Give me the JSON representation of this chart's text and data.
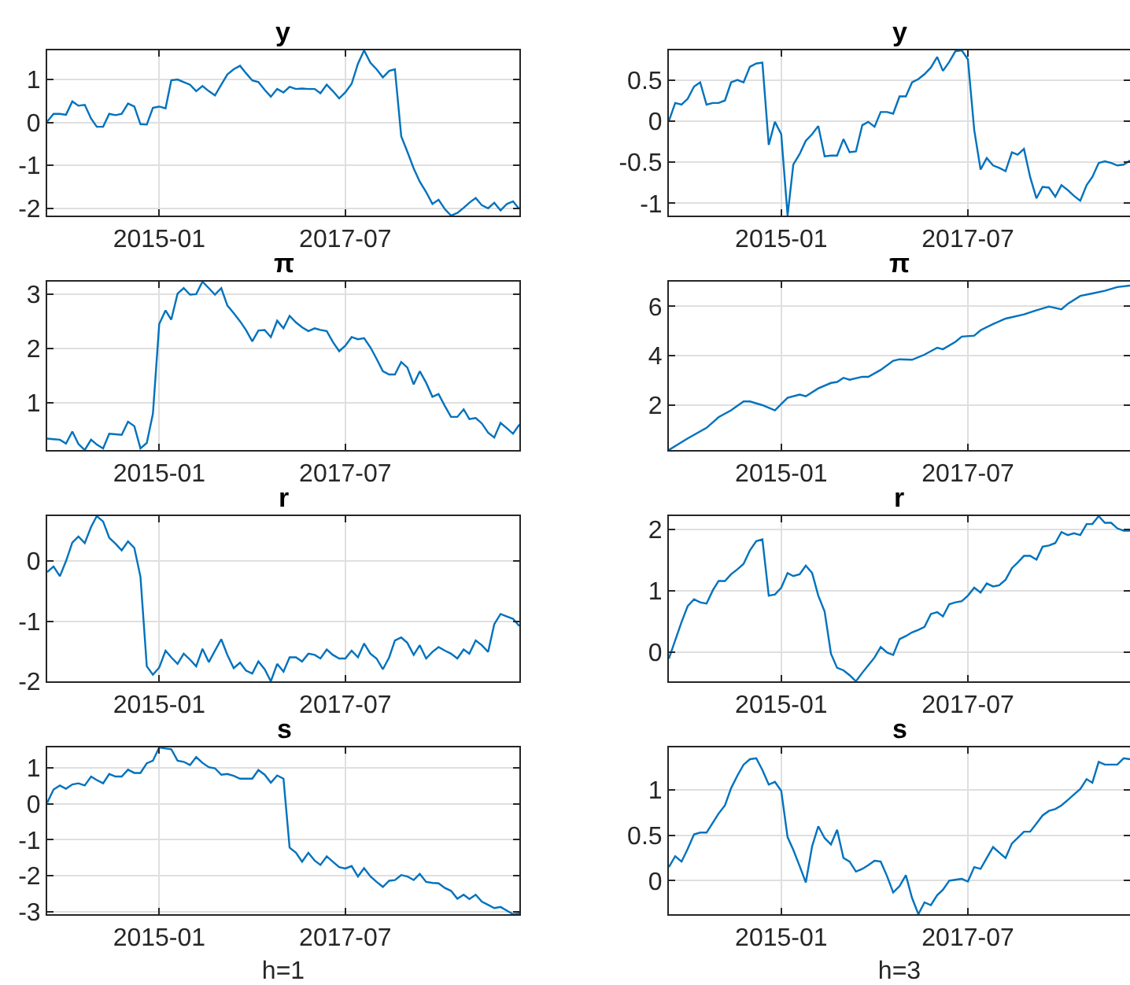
{
  "chart_data": [
    {
      "type": "line",
      "title": "y",
      "color": "#0072bd",
      "grid": true,
      "xlim": [
        "2013-07",
        "2019-11"
      ],
      "xticks": [
        "2015-01",
        "2017-07"
      ],
      "ylim": [
        -2.17,
        1.68
      ],
      "yticks": [
        -2,
        -1,
        0,
        1
      ],
      "x": [
        "2013-07",
        "2013-08",
        "2013-09",
        "2013-10",
        "2013-11",
        "2013-12",
        "2014-01",
        "2014-02",
        "2014-03",
        "2014-04",
        "2014-05",
        "2014-06",
        "2014-07",
        "2014-08",
        "2014-09",
        "2014-10",
        "2014-11",
        "2014-12",
        "2015-01",
        "2015-02",
        "2015-03",
        "2015-04",
        "2015-05",
        "2015-06",
        "2015-07",
        "2015-08",
        "2015-09",
        "2015-10",
        "2015-11",
        "2015-12",
        "2016-01",
        "2016-02",
        "2016-03",
        "2016-04",
        "2016-05",
        "2016-06",
        "2016-07",
        "2016-08",
        "2016-09",
        "2016-10",
        "2016-11",
        "2016-12",
        "2017-01",
        "2017-02",
        "2017-03",
        "2017-04",
        "2017-05",
        "2017-06",
        "2017-07",
        "2017-08",
        "2017-09",
        "2017-10",
        "2017-11",
        "2017-12",
        "2018-01",
        "2018-02",
        "2018-03",
        "2018-04",
        "2018-05",
        "2018-06",
        "2018-07",
        "2018-08",
        "2018-09",
        "2018-10",
        "2018-11",
        "2018-12",
        "2019-01",
        "2019-02",
        "2019-03",
        "2019-04",
        "2019-05",
        "2019-06",
        "2019-07",
        "2019-08",
        "2019-09",
        "2019-10",
        "2019-11"
      ],
      "values": [
        0.02,
        0.2,
        0.2,
        0.18,
        0.49,
        0.39,
        0.41,
        0.09,
        -0.1,
        -0.1,
        0.2,
        0.17,
        0.2,
        0.44,
        0.37,
        -0.04,
        -0.05,
        0.34,
        0.37,
        0.33,
        0.98,
        1.0,
        0.94,
        0.88,
        0.73,
        0.85,
        0.73,
        0.63,
        0.88,
        1.12,
        1.24,
        1.32,
        1.15,
        0.98,
        0.94,
        0.76,
        0.6,
        0.78,
        0.7,
        0.83,
        0.78,
        0.79,
        0.78,
        0.78,
        0.68,
        0.88,
        0.73,
        0.56,
        0.7,
        0.9,
        1.37,
        1.68,
        1.39,
        1.24,
        1.05,
        1.2,
        1.24,
        -0.32,
        -0.68,
        -1.07,
        -1.38,
        -1.62,
        -1.9,
        -1.8,
        -2.02,
        -2.17,
        -2.11,
        -1.99,
        -1.87,
        -1.76,
        -1.93,
        -2.0,
        -1.87,
        -2.05,
        -1.9,
        -1.84,
        -2.02
      ]
    },
    {
      "type": "line",
      "title": "y",
      "color": "#0072bd",
      "grid": true,
      "xlim": [
        "2013-07",
        "2019-09"
      ],
      "xticks": [
        "2015-01",
        "2017-07"
      ],
      "ylim": [
        -1.15,
        0.86
      ],
      "yticks": [
        -1,
        -0.5,
        0,
        0.5
      ],
      "x": [
        "2013-07",
        "2013-08",
        "2013-09",
        "2013-10",
        "2013-11",
        "2013-12",
        "2014-01",
        "2014-02",
        "2014-03",
        "2014-04",
        "2014-05",
        "2014-06",
        "2014-07",
        "2014-08",
        "2014-09",
        "2014-10",
        "2014-11",
        "2014-12",
        "2015-01",
        "2015-02",
        "2015-03",
        "2015-04",
        "2015-05",
        "2015-06",
        "2015-07",
        "2015-08",
        "2015-09",
        "2015-10",
        "2015-11",
        "2015-12",
        "2016-01",
        "2016-02",
        "2016-03",
        "2016-04",
        "2016-05",
        "2016-06",
        "2016-07",
        "2016-08",
        "2016-09",
        "2016-10",
        "2016-11",
        "2016-12",
        "2017-01",
        "2017-02",
        "2017-03",
        "2017-04",
        "2017-05",
        "2017-06",
        "2017-07",
        "2017-08",
        "2017-09",
        "2017-10",
        "2017-11",
        "2017-12",
        "2018-01",
        "2018-02",
        "2018-03",
        "2018-04",
        "2018-05",
        "2018-06",
        "2018-07",
        "2018-08",
        "2018-09",
        "2018-10",
        "2018-11",
        "2018-12",
        "2019-01",
        "2019-02",
        "2019-03",
        "2019-04",
        "2019-05",
        "2019-06",
        "2019-07",
        "2019-08",
        "2019-09"
      ],
      "values": [
        0,
        0.22,
        0.2,
        0.27,
        0.42,
        0.47,
        0.2,
        0.22,
        0.22,
        0.25,
        0.47,
        0.5,
        0.47,
        0.66,
        0.7,
        0.71,
        -0.29,
        -0.01,
        -0.16,
        -1.15,
        -0.53,
        -0.4,
        -0.24,
        -0.16,
        -0.06,
        -0.43,
        -0.42,
        -0.42,
        -0.22,
        -0.38,
        -0.37,
        -0.05,
        -0.01,
        -0.07,
        0.11,
        0.11,
        0.09,
        0.3,
        0.3,
        0.47,
        0.51,
        0.57,
        0.65,
        0.78,
        0.61,
        0.72,
        0.85,
        0.86,
        0.75,
        -0.11,
        -0.59,
        -0.45,
        -0.54,
        -0.57,
        -0.61,
        -0.38,
        -0.41,
        -0.34,
        -0.68,
        -0.94,
        -0.8,
        -0.81,
        -0.92,
        -0.78,
        -0.84,
        -0.91,
        -0.97,
        -0.78,
        -0.68,
        -0.51,
        -0.49,
        -0.51,
        -0.54,
        -0.53,
        -0.48
      ]
    },
    {
      "type": "line",
      "title": "π",
      "color": "#0072bd",
      "grid": true,
      "xlim": [
        "2013-07",
        "2019-11"
      ],
      "xticks": [
        "2015-01",
        "2017-07"
      ],
      "ylim": [
        0.13,
        3.23
      ],
      "yticks": [
        1,
        2,
        3
      ],
      "x": [
        "2013-07",
        "2013-08",
        "2013-09",
        "2013-10",
        "2013-11",
        "2013-12",
        "2014-01",
        "2014-02",
        "2014-03",
        "2014-04",
        "2014-05",
        "2014-06",
        "2014-07",
        "2014-08",
        "2014-09",
        "2014-10",
        "2014-11",
        "2014-12",
        "2015-01",
        "2015-02",
        "2015-03",
        "2015-04",
        "2015-05",
        "2015-06",
        "2015-07",
        "2015-08",
        "2015-09",
        "2015-10",
        "2015-11",
        "2015-12",
        "2016-01",
        "2016-02",
        "2016-03",
        "2016-04",
        "2016-05",
        "2016-06",
        "2016-07",
        "2016-08",
        "2016-09",
        "2016-10",
        "2016-11",
        "2016-12",
        "2017-01",
        "2017-02",
        "2017-03",
        "2017-04",
        "2017-05",
        "2017-06",
        "2017-07",
        "2017-08",
        "2017-09",
        "2017-10",
        "2017-11",
        "2017-12",
        "2018-01",
        "2018-02",
        "2018-03",
        "2018-04",
        "2018-05",
        "2018-06",
        "2018-07",
        "2018-08",
        "2018-09",
        "2018-10",
        "2018-11",
        "2018-12",
        "2019-01",
        "2019-02",
        "2019-03",
        "2019-04",
        "2019-05",
        "2019-06",
        "2019-07",
        "2019-08",
        "2019-09",
        "2019-10",
        "2019-11"
      ],
      "values": [
        0.34,
        0.33,
        0.32,
        0.25,
        0.47,
        0.24,
        0.13,
        0.32,
        0.23,
        0.16,
        0.43,
        0.42,
        0.41,
        0.65,
        0.57,
        0.16,
        0.26,
        0.8,
        2.45,
        2.7,
        2.53,
        3.01,
        3.11,
        2.99,
        3.0,
        3.23,
        3.11,
        2.99,
        3.11,
        2.79,
        2.65,
        2.5,
        2.34,
        2.13,
        2.33,
        2.34,
        2.21,
        2.51,
        2.37,
        2.6,
        2.48,
        2.39,
        2.32,
        2.37,
        2.34,
        2.32,
        2.12,
        1.95,
        2.05,
        2.21,
        2.17,
        2.19,
        2.02,
        1.81,
        1.58,
        1.52,
        1.52,
        1.75,
        1.65,
        1.34,
        1.58,
        1.37,
        1.11,
        1.16,
        0.94,
        0.74,
        0.74,
        0.88,
        0.7,
        0.72,
        0.62,
        0.45,
        0.36,
        0.63,
        0.53,
        0.43,
        0.6
      ]
    },
    {
      "type": "line",
      "title": "π",
      "color": "#0072bd",
      "grid": true,
      "xlim": [
        "2013-07",
        "2019-09"
      ],
      "xticks": [
        "2015-01",
        "2017-07"
      ],
      "ylim": [
        0.17,
        7
      ],
      "yticks": [
        2,
        4,
        6
      ],
      "x": [
        "2013-07",
        "2013-10",
        "2014-01",
        "2014-03",
        "2014-05",
        "2014-07",
        "2014-08",
        "2014-10",
        "2014-12",
        "2015-02",
        "2015-04",
        "2015-05",
        "2015-07",
        "2015-09",
        "2015-10",
        "2015-11",
        "2015-12",
        "2016-02",
        "2016-03",
        "2016-05",
        "2016-07",
        "2016-08",
        "2016-10",
        "2016-12",
        "2017-02",
        "2017-03",
        "2017-05",
        "2017-06",
        "2017-08",
        "2017-09",
        "2017-11",
        "2018-01",
        "2018-04",
        "2018-06",
        "2018-08",
        "2018-10",
        "2018-11",
        "2019-01",
        "2019-03",
        "2019-05",
        "2019-07",
        "2019-09"
      ],
      "values": [
        0.17,
        0.64,
        1.07,
        1.5,
        1.78,
        2.14,
        2.14,
        1.99,
        1.78,
        2.29,
        2.42,
        2.35,
        2.67,
        2.89,
        2.93,
        3.1,
        3.02,
        3.14,
        3.14,
        3.42,
        3.79,
        3.85,
        3.83,
        4.04,
        4.32,
        4.26,
        4.56,
        4.77,
        4.81,
        5.03,
        5.28,
        5.5,
        5.67,
        5.84,
        5.99,
        5.88,
        6.1,
        6.42,
        6.52,
        6.63,
        6.78,
        6.84
      ]
    },
    {
      "type": "line",
      "title": "r",
      "color": "#0072bd",
      "grid": true,
      "xlim": [
        "2013-07",
        "2019-11"
      ],
      "xticks": [
        "2015-01",
        "2017-07"
      ],
      "ylim": [
        -2.0,
        0.75
      ],
      "yticks": [
        -2,
        -1,
        0
      ],
      "x": [
        "2013-07",
        "2013-08",
        "2013-09",
        "2013-10",
        "2013-11",
        "2013-12",
        "2014-01",
        "2014-02",
        "2014-03",
        "2014-04",
        "2014-05",
        "2014-06",
        "2014-07",
        "2014-08",
        "2014-09",
        "2014-10",
        "2014-11",
        "2014-12",
        "2015-01",
        "2015-02",
        "2015-03",
        "2015-04",
        "2015-05",
        "2015-06",
        "2015-07",
        "2015-08",
        "2015-09",
        "2015-10",
        "2015-11",
        "2015-12",
        "2016-01",
        "2016-02",
        "2016-03",
        "2016-04",
        "2016-05",
        "2016-06",
        "2016-07",
        "2016-08",
        "2016-09",
        "2016-10",
        "2016-11",
        "2016-12",
        "2017-01",
        "2017-02",
        "2017-03",
        "2017-04",
        "2017-05",
        "2017-06",
        "2017-07",
        "2017-08",
        "2017-09",
        "2017-10",
        "2017-11",
        "2017-12",
        "2018-01",
        "2018-02",
        "2018-03",
        "2018-04",
        "2018-05",
        "2018-06",
        "2018-07",
        "2018-08",
        "2018-09",
        "2018-10",
        "2018-11",
        "2018-12",
        "2019-01",
        "2019-02",
        "2019-03",
        "2019-04",
        "2019-05",
        "2019-06",
        "2019-07",
        "2019-08",
        "2019-09",
        "2019-10",
        "2019-11"
      ],
      "values": [
        -0.18,
        -0.09,
        -0.25,
        0.0,
        0.31,
        0.41,
        0.3,
        0.57,
        0.75,
        0.66,
        0.39,
        0.29,
        0.18,
        0.33,
        0.22,
        -0.26,
        -1.75,
        -1.89,
        -1.77,
        -1.49,
        -1.6,
        -1.71,
        -1.54,
        -1.64,
        -1.75,
        -1.46,
        -1.68,
        -1.49,
        -1.3,
        -1.56,
        -1.78,
        -1.69,
        -1.82,
        -1.87,
        -1.67,
        -1.8,
        -2.0,
        -1.71,
        -1.84,
        -1.6,
        -1.6,
        -1.67,
        -1.54,
        -1.56,
        -1.62,
        -1.47,
        -1.56,
        -1.62,
        -1.62,
        -1.49,
        -1.6,
        -1.37,
        -1.54,
        -1.62,
        -1.8,
        -1.6,
        -1.32,
        -1.27,
        -1.36,
        -1.56,
        -1.4,
        -1.62,
        -1.51,
        -1.43,
        -1.49,
        -1.54,
        -1.62,
        -1.47,
        -1.54,
        -1.32,
        -1.4,
        -1.51,
        -1.05,
        -0.88,
        -0.92,
        -0.96,
        -1.08
      ]
    },
    {
      "type": "line",
      "title": "r",
      "color": "#0072bd",
      "grid": true,
      "xlim": [
        "2013-07",
        "2019-09"
      ],
      "xticks": [
        "2015-01",
        "2017-07"
      ],
      "ylim": [
        -0.48,
        2.22
      ],
      "yticks": [
        0,
        1,
        2
      ],
      "x": [
        "2013-07",
        "2013-08",
        "2013-09",
        "2013-10",
        "2013-11",
        "2013-12",
        "2014-01",
        "2014-02",
        "2014-03",
        "2014-04",
        "2014-05",
        "2014-06",
        "2014-07",
        "2014-08",
        "2014-09",
        "2014-10",
        "2014-11",
        "2014-12",
        "2015-01",
        "2015-02",
        "2015-03",
        "2015-04",
        "2015-05",
        "2015-06",
        "2015-07",
        "2015-08",
        "2015-09",
        "2015-10",
        "2015-11",
        "2015-12",
        "2016-01",
        "2016-02",
        "2016-03",
        "2016-04",
        "2016-05",
        "2016-06",
        "2016-07",
        "2016-08",
        "2016-09",
        "2016-10",
        "2016-11",
        "2016-12",
        "2017-01",
        "2017-02",
        "2017-03",
        "2017-04",
        "2017-05",
        "2017-06",
        "2017-07",
        "2017-08",
        "2017-09",
        "2017-10",
        "2017-11",
        "2017-12",
        "2018-01",
        "2018-02",
        "2018-03",
        "2018-04",
        "2018-05",
        "2018-06",
        "2018-07",
        "2018-08",
        "2018-09",
        "2018-10",
        "2018-11",
        "2018-12",
        "2019-01",
        "2019-02",
        "2019-03",
        "2019-04",
        "2019-05",
        "2019-06",
        "2019-07",
        "2019-08",
        "2019-09"
      ],
      "values": [
        -0.11,
        0.19,
        0.49,
        0.75,
        0.86,
        0.81,
        0.79,
        1.01,
        1.16,
        1.16,
        1.27,
        1.35,
        1.44,
        1.66,
        1.81,
        1.84,
        0.92,
        0.94,
        1.05,
        1.29,
        1.24,
        1.27,
        1.41,
        1.29,
        0.92,
        0.66,
        -0.03,
        -0.26,
        -0.3,
        -0.38,
        -0.48,
        -0.34,
        -0.22,
        -0.09,
        0.08,
        -0.01,
        -0.05,
        0.21,
        0.26,
        0.32,
        0.36,
        0.41,
        0.62,
        0.65,
        0.58,
        0.78,
        0.81,
        0.83,
        0.92,
        1.05,
        0.97,
        1.12,
        1.07,
        1.09,
        1.18,
        1.37,
        1.46,
        1.57,
        1.57,
        1.51,
        1.72,
        1.74,
        1.78,
        1.96,
        1.91,
        1.94,
        1.91,
        2.09,
        2.09,
        2.22,
        2.11,
        2.11,
        2.02,
        1.98,
        1.98
      ]
    },
    {
      "type": "line",
      "title": "s",
      "xlabel": "h=1",
      "color": "#0072bd",
      "grid": true,
      "xlim": [
        "2013-07",
        "2019-11"
      ],
      "xticks": [
        "2015-01",
        "2017-07"
      ],
      "ylim": [
        -3.07,
        1.57
      ],
      "yticks": [
        -3,
        -2,
        -1,
        0,
        1
      ],
      "x": [
        "2013-07",
        "2013-08",
        "2013-09",
        "2013-10",
        "2013-11",
        "2013-12",
        "2014-01",
        "2014-02",
        "2014-03",
        "2014-04",
        "2014-05",
        "2014-06",
        "2014-07",
        "2014-08",
        "2014-09",
        "2014-10",
        "2014-11",
        "2014-12",
        "2015-01",
        "2015-02",
        "2015-03",
        "2015-04",
        "2015-05",
        "2015-06",
        "2015-07",
        "2015-08",
        "2015-09",
        "2015-10",
        "2015-11",
        "2015-12",
        "2016-01",
        "2016-02",
        "2016-03",
        "2016-04",
        "2016-05",
        "2016-06",
        "2016-07",
        "2016-08",
        "2016-09",
        "2016-10",
        "2016-11",
        "2016-12",
        "2017-01",
        "2017-02",
        "2017-03",
        "2017-04",
        "2017-05",
        "2017-06",
        "2017-07",
        "2017-08",
        "2017-09",
        "2017-10",
        "2017-11",
        "2017-12",
        "2018-01",
        "2018-02",
        "2018-03",
        "2018-04",
        "2018-05",
        "2018-06",
        "2018-07",
        "2018-08",
        "2018-09",
        "2018-10",
        "2018-11",
        "2018-12",
        "2019-01",
        "2019-02",
        "2019-03",
        "2019-04",
        "2019-05",
        "2019-06",
        "2019-07",
        "2019-08",
        "2019-09",
        "2019-10",
        "2019-11"
      ],
      "values": [
        0.03,
        0.4,
        0.51,
        0.42,
        0.54,
        0.57,
        0.51,
        0.76,
        0.66,
        0.57,
        0.83,
        0.76,
        0.76,
        0.95,
        0.86,
        0.86,
        1.13,
        1.2,
        1.57,
        1.54,
        1.52,
        1.2,
        1.17,
        1.08,
        1.3,
        1.14,
        1.02,
        0.99,
        0.81,
        0.83,
        0.78,
        0.7,
        0.7,
        0.7,
        0.94,
        0.81,
        0.59,
        0.79,
        0.7,
        -1.22,
        -1.36,
        -1.61,
        -1.36,
        -1.58,
        -1.7,
        -1.46,
        -1.61,
        -1.76,
        -1.8,
        -1.73,
        -2.02,
        -1.79,
        -2.02,
        -2.17,
        -2.31,
        -2.14,
        -2.12,
        -1.98,
        -2.02,
        -2.12,
        -1.95,
        -2.17,
        -2.2,
        -2.21,
        -2.34,
        -2.42,
        -2.64,
        -2.53,
        -2.65,
        -2.53,
        -2.72,
        -2.81,
        -2.9,
        -2.87,
        -2.97,
        -3.07,
        -3.05
      ]
    },
    {
      "type": "line",
      "title": "s",
      "xlabel": "h=3",
      "color": "#0072bd",
      "grid": true,
      "xlim": [
        "2013-07",
        "2019-09"
      ],
      "xticks": [
        "2015-01",
        "2017-07"
      ],
      "ylim": [
        -0.37,
        1.47
      ],
      "yticks": [
        0,
        0.5,
        1
      ],
      "x": [
        "2013-07",
        "2013-08",
        "2013-09",
        "2013-10",
        "2013-11",
        "2013-12",
        "2014-01",
        "2014-02",
        "2014-03",
        "2014-04",
        "2014-05",
        "2014-06",
        "2014-07",
        "2014-08",
        "2014-09",
        "2014-10",
        "2014-11",
        "2014-12",
        "2015-01",
        "2015-02",
        "2015-03",
        "2015-04",
        "2015-05",
        "2015-06",
        "2015-07",
        "2015-08",
        "2015-09",
        "2015-10",
        "2015-11",
        "2015-12",
        "2016-01",
        "2016-02",
        "2016-03",
        "2016-04",
        "2016-05",
        "2016-06",
        "2016-07",
        "2016-08",
        "2016-09",
        "2016-10",
        "2016-11",
        "2016-12",
        "2017-01",
        "2017-02",
        "2017-03",
        "2017-04",
        "2017-05",
        "2017-06",
        "2017-07",
        "2017-08",
        "2017-09",
        "2017-10",
        "2017-11",
        "2017-12",
        "2018-01",
        "2018-02",
        "2018-03",
        "2018-04",
        "2018-05",
        "2018-06",
        "2018-07",
        "2018-08",
        "2018-09",
        "2018-10",
        "2018-11",
        "2018-12",
        "2019-01",
        "2019-02",
        "2019-03",
        "2019-04",
        "2019-05",
        "2019-06",
        "2019-07",
        "2019-08",
        "2019-09"
      ],
      "values": [
        0.15,
        0.27,
        0.21,
        0.35,
        0.51,
        0.53,
        0.53,
        0.64,
        0.74,
        0.83,
        1.02,
        1.16,
        1.28,
        1.34,
        1.35,
        1.22,
        1.06,
        1.09,
        0.99,
        0.48,
        0.34,
        0.16,
        -0.02,
        0.38,
        0.6,
        0.47,
        0.4,
        0.56,
        0.25,
        0.21,
        0.1,
        0.13,
        0.17,
        0.22,
        0.21,
        0.05,
        -0.13,
        -0.06,
        0.06,
        -0.19,
        -0.37,
        -0.24,
        -0.27,
        -0.16,
        -0.1,
        0.0,
        0.01,
        0.02,
        -0.01,
        0.15,
        0.13,
        0.25,
        0.37,
        0.31,
        0.25,
        0.41,
        0.47,
        0.54,
        0.54,
        0.63,
        0.72,
        0.77,
        0.79,
        0.83,
        0.89,
        0.95,
        1.01,
        1.12,
        1.08,
        1.31,
        1.28,
        1.28,
        1.28,
        1.35,
        1.34
      ]
    }
  ]
}
